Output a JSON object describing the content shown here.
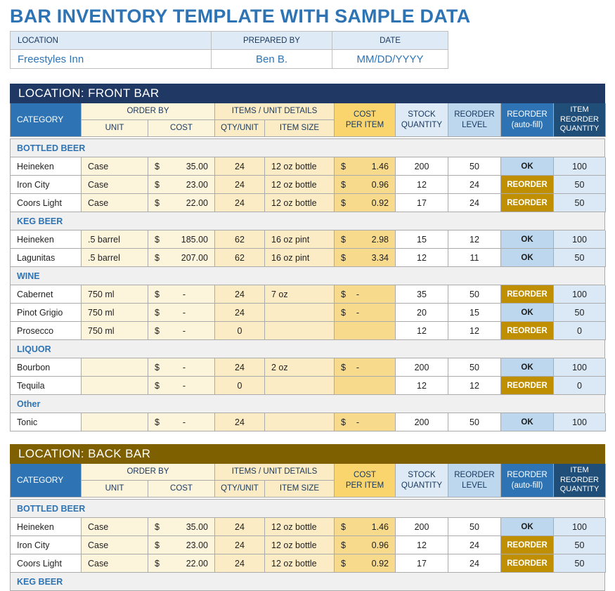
{
  "title": "BAR INVENTORY TEMPLATE WITH SAMPLE DATA",
  "colors": {
    "accent_blue": "#2E74B5",
    "front_bar_header": "#1F3864",
    "back_bar_header": "#7F6000",
    "item_reorder_header": "#1F4E79",
    "ok_bg": "#BDD7EE",
    "reorder_bg": "#BF8F00",
    "group_row_bg": "#F0F0F0"
  },
  "info": {
    "headers": [
      "LOCATION",
      "PREPARED BY",
      "DATE"
    ],
    "values": [
      "Freestyles Inn",
      "Ben B.",
      "MM/DD/YYYY"
    ]
  },
  "table_headers": {
    "category": "CATEGORY",
    "order_by": "ORDER BY",
    "unit": "UNIT",
    "cost": "COST",
    "items_unit_details": "ITEMS / UNIT DETAILS",
    "qty_unit": "QTY/UNIT",
    "item_size": "ITEM SIZE",
    "cost_per_item": [
      "COST",
      "PER ITEM"
    ],
    "stock_quantity": [
      "STOCK",
      "QUANTITY"
    ],
    "reorder_level": [
      "REORDER",
      "LEVEL"
    ],
    "reorder_autofill": [
      "REORDER",
      "(auto-fill)"
    ],
    "item_reorder_quantity": [
      "ITEM",
      "REORDER",
      "QUANTITY"
    ],
    "currency_symbol": "$"
  },
  "sections": [
    {
      "id": "front-bar",
      "title": "LOCATION: FRONT BAR",
      "header_color": "#1F3864",
      "stub_row": false,
      "groups": [
        {
          "name": "BOTTLED BEER",
          "rows": [
            {
              "item": "Heineken",
              "unit": "Case",
              "cost": "35.00",
              "qty": "24",
              "size": "12 oz bottle",
              "cost_per_item": "1.46",
              "stock": "200",
              "reorder_level": "50",
              "status": "OK",
              "reorder_qty": "100"
            },
            {
              "item": "Iron City",
              "unit": "Case",
              "cost": "23.00",
              "qty": "24",
              "size": "12 oz bottle",
              "cost_per_item": "0.96",
              "stock": "12",
              "reorder_level": "24",
              "status": "REORDER",
              "reorder_qty": "50"
            },
            {
              "item": "Coors Light",
              "unit": "Case",
              "cost": "22.00",
              "qty": "24",
              "size": "12 oz bottle",
              "cost_per_item": "0.92",
              "stock": "17",
              "reorder_level": "24",
              "status": "REORDER",
              "reorder_qty": "50"
            }
          ]
        },
        {
          "name": "KEG BEER",
          "rows": [
            {
              "item": "Heineken",
              "unit": ".5 barrel",
              "cost": "185.00",
              "qty": "62",
              "size": "16 oz pint",
              "cost_per_item": "2.98",
              "stock": "15",
              "reorder_level": "12",
              "status": "OK",
              "reorder_qty": "100"
            },
            {
              "item": "Lagunitas",
              "unit": ".5 barrel",
              "cost": "207.00",
              "qty": "62",
              "size": "16 oz pint",
              "cost_per_item": "3.34",
              "stock": "12",
              "reorder_level": "11",
              "status": "OK",
              "reorder_qty": "50"
            }
          ]
        },
        {
          "name": "WINE",
          "rows": [
            {
              "item": "Cabernet",
              "unit": "750 ml",
              "cost": "-",
              "qty": "24",
              "size": "7 oz",
              "cost_per_item": "-",
              "stock": "35",
              "reorder_level": "50",
              "status": "REORDER",
              "reorder_qty": "100"
            },
            {
              "item": "Pinot Grigio",
              "unit": "750 ml",
              "cost": "-",
              "qty": "24",
              "size": "",
              "cost_per_item": "-",
              "stock": "20",
              "reorder_level": "15",
              "status": "OK",
              "reorder_qty": "50"
            },
            {
              "item": "Prosecco",
              "unit": "750 ml",
              "cost": "-",
              "qty": "0",
              "size": "",
              "cost_per_item": "",
              "stock": "12",
              "reorder_level": "12",
              "status": "REORDER",
              "reorder_qty": "0"
            }
          ]
        },
        {
          "name": "LIQUOR",
          "rows": [
            {
              "item": "Bourbon",
              "unit": "",
              "cost": "-",
              "qty": "24",
              "size": "2 oz",
              "cost_per_item": "-",
              "stock": "200",
              "reorder_level": "50",
              "status": "OK",
              "reorder_qty": "100"
            },
            {
              "item": "Tequila",
              "unit": "",
              "cost": "-",
              "qty": "0",
              "size": "",
              "cost_per_item": "",
              "stock": "12",
              "reorder_level": "12",
              "status": "REORDER",
              "reorder_qty": "0"
            }
          ]
        },
        {
          "name": "Other",
          "rows": [
            {
              "item": "Tonic",
              "unit": "",
              "cost": "-",
              "qty": "24",
              "size": "",
              "cost_per_item": "-",
              "stock": "200",
              "reorder_level": "50",
              "status": "OK",
              "reorder_qty": "100"
            }
          ]
        }
      ]
    },
    {
      "id": "back-bar",
      "title": "LOCATION: BACK BAR",
      "header_color": "#7F6000",
      "stub_row": true,
      "groups": [
        {
          "name": "BOTTLED BEER",
          "rows": [
            {
              "item": "Heineken",
              "unit": "Case",
              "cost": "35.00",
              "qty": "24",
              "size": "12 oz bottle",
              "cost_per_item": "1.46",
              "stock": "200",
              "reorder_level": "50",
              "status": "OK",
              "reorder_qty": "100"
            },
            {
              "item": "Iron City",
              "unit": "Case",
              "cost": "23.00",
              "qty": "24",
              "size": "12 oz bottle",
              "cost_per_item": "0.96",
              "stock": "12",
              "reorder_level": "24",
              "status": "REORDER",
              "reorder_qty": "50"
            },
            {
              "item": "Coors Light",
              "unit": "Case",
              "cost": "22.00",
              "qty": "24",
              "size": "12 oz bottle",
              "cost_per_item": "0.92",
              "stock": "17",
              "reorder_level": "24",
              "status": "REORDER",
              "reorder_qty": "50"
            }
          ]
        },
        {
          "name": "KEG BEER",
          "rows": []
        }
      ]
    }
  ]
}
